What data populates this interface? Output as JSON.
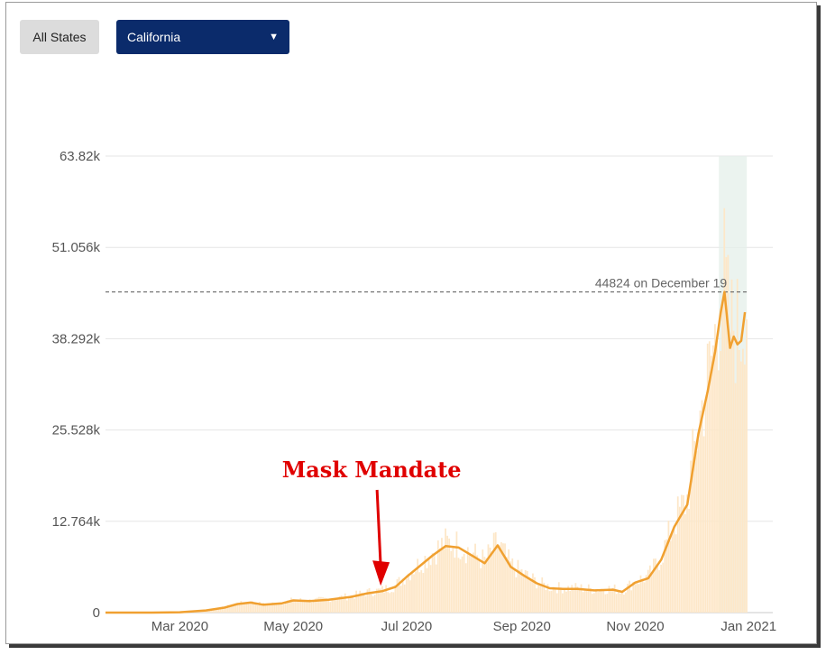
{
  "controls": {
    "all_states_label": "All States",
    "state_select_value": "California",
    "state_select_caret": "▼"
  },
  "colors": {
    "line": "#f0a030",
    "bars": "#fde7c8",
    "select_bg": "#0b2b6b",
    "annotation": "#e00000"
  },
  "chart_data": {
    "type": "line",
    "title": "",
    "xlabel": "",
    "ylabel": "",
    "ylim": [
      0,
      63820
    ],
    "yticks": [
      {
        "value": 0,
        "label": "0"
      },
      {
        "value": 12764,
        "label": "12.764k"
      },
      {
        "value": 25528,
        "label": "25.528k"
      },
      {
        "value": 38292,
        "label": "38.292k"
      },
      {
        "value": 51056,
        "label": "51.056k"
      },
      {
        "value": 63820,
        "label": "63.82k"
      }
    ],
    "xlim": [
      "2020-01-21",
      "2021-01-14"
    ],
    "xticks": [
      {
        "value": "2020-03-01",
        "label": "Mar 2020"
      },
      {
        "value": "2020-05-01",
        "label": "May 2020"
      },
      {
        "value": "2020-07-01",
        "label": "Jul 2020"
      },
      {
        "value": "2020-09-01",
        "label": "Sep 2020"
      },
      {
        "value": "2020-11-01",
        "label": "Nov 2020"
      },
      {
        "value": "2021-01-01",
        "label": "Jan 2021"
      }
    ],
    "grid": true,
    "series": [
      {
        "points": [
          [
            "2020-01-21",
            0
          ],
          [
            "2020-02-15",
            0
          ],
          [
            "2020-03-01",
            50
          ],
          [
            "2020-03-15",
            300
          ],
          [
            "2020-03-25",
            700
          ],
          [
            "2020-04-01",
            1200
          ],
          [
            "2020-04-08",
            1400
          ],
          [
            "2020-04-15",
            1100
          ],
          [
            "2020-04-25",
            1300
          ],
          [
            "2020-05-01",
            1700
          ],
          [
            "2020-05-10",
            1600
          ],
          [
            "2020-05-20",
            1800
          ],
          [
            "2020-06-01",
            2200
          ],
          [
            "2020-06-10",
            2700
          ],
          [
            "2020-06-18",
            3000
          ],
          [
            "2020-06-25",
            3600
          ],
          [
            "2020-07-01",
            5000
          ],
          [
            "2020-07-08",
            6500
          ],
          [
            "2020-07-15",
            8000
          ],
          [
            "2020-07-22",
            9300
          ],
          [
            "2020-07-29",
            9100
          ],
          [
            "2020-08-05",
            8000
          ],
          [
            "2020-08-12",
            6900
          ],
          [
            "2020-08-19",
            9400
          ],
          [
            "2020-08-26",
            6400
          ],
          [
            "2020-09-02",
            5200
          ],
          [
            "2020-09-09",
            4100
          ],
          [
            "2020-09-16",
            3400
          ],
          [
            "2020-09-23",
            3300
          ],
          [
            "2020-10-01",
            3300
          ],
          [
            "2020-10-10",
            3100
          ],
          [
            "2020-10-20",
            3200
          ],
          [
            "2020-10-25",
            2900
          ],
          [
            "2020-11-01",
            4200
          ],
          [
            "2020-11-08",
            4800
          ],
          [
            "2020-11-15",
            7400
          ],
          [
            "2020-11-22",
            12000
          ],
          [
            "2020-11-29",
            15100
          ],
          [
            "2020-12-05",
            25000
          ],
          [
            "2020-12-10",
            31000
          ],
          [
            "2020-12-14",
            36500
          ],
          [
            "2020-12-17",
            42000
          ],
          [
            "2020-12-19",
            44824
          ],
          [
            "2020-12-22",
            37000
          ],
          [
            "2020-12-24",
            38600
          ],
          [
            "2020-12-26",
            37500
          ],
          [
            "2020-12-28",
            38000
          ],
          [
            "2020-12-30",
            42000
          ]
        ]
      }
    ],
    "max_line": {
      "value": 44824,
      "label": "44824 on December 19"
    },
    "highlight_range": [
      "2020-12-16",
      "2020-12-31"
    ],
    "annotations": [
      {
        "text": "Mask Mandate",
        "date": "2020-06-18",
        "value": 3000
      }
    ]
  }
}
